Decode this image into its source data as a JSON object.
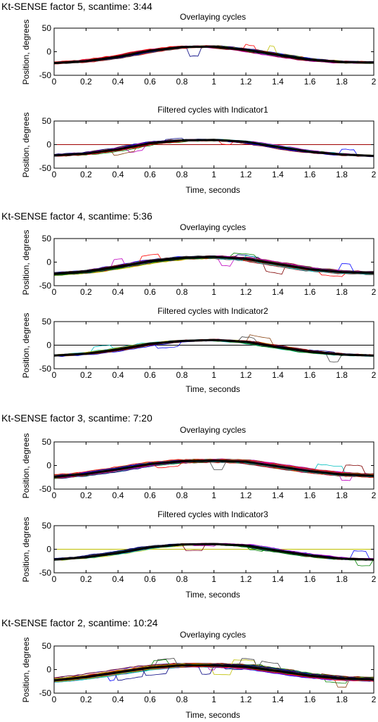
{
  "colors": {
    "axis": "#000000",
    "background": "#ffffff",
    "mean_trace": "#000000",
    "palette": [
      "#0000ff",
      "#008000",
      "#ff0000",
      "#00bfbf",
      "#bf00bf",
      "#bfbf00",
      "#404040",
      "#8b4513",
      "#000080",
      "#800000"
    ]
  },
  "sections": [
    {
      "heading": "Kt-SENSE factor 5, scantime: 3:44"
    },
    {
      "heading": "Kt-SENSE factor 4, scantime: 5:36"
    },
    {
      "heading": "Kt-SENSE factor 3, scantime: 7:20"
    },
    {
      "heading": "Kt-SENSE factor 2, scantime: 10:24"
    }
  ],
  "chart_data": [
    {
      "type": "line",
      "section": 0,
      "title": "Overlaying cycles",
      "xlabel": "",
      "ylabel": "Position, degrees",
      "xlim": [
        0,
        2
      ],
      "ylim": [
        -50,
        50
      ],
      "xticks": [
        "0",
        "0.2",
        "0.4",
        "0.6",
        "0.8",
        "1",
        "1.2",
        "1.4",
        "1.6",
        "1.8",
        "2"
      ],
      "yticks": [
        "50",
        "0",
        "-50"
      ],
      "grid": false,
      "trace_count": 40,
      "spread": 4,
      "reference_line": null,
      "mean_cycle": {
        "x": [
          0,
          0.2,
          0.4,
          0.6,
          0.8,
          1.0,
          1.2,
          1.4,
          1.6,
          1.8,
          2.0
        ],
        "y": [
          -24,
          -20,
          -11,
          2,
          10,
          11,
          4,
          -7,
          -17,
          -22,
          -23
        ]
      }
    },
    {
      "type": "line",
      "section": 0,
      "title": "Filtered cycles with Indicator1",
      "xlabel": "Time, seconds",
      "ylabel": "Position, degrees",
      "xlim": [
        0,
        2
      ],
      "ylim": [
        -50,
        50
      ],
      "xticks": [
        "0",
        "0.2",
        "0.4",
        "0.6",
        "0.8",
        "1",
        "1.2",
        "1.4",
        "1.6",
        "1.8",
        "2"
      ],
      "yticks": [
        "50",
        "0",
        "-50"
      ],
      "grid": false,
      "trace_count": 25,
      "spread": 3,
      "reference_line": {
        "y": 0,
        "color": "#a00000"
      },
      "mean_cycle": {
        "x": [
          0,
          0.2,
          0.4,
          0.6,
          0.8,
          1.0,
          1.2,
          1.4,
          1.6,
          1.8,
          2.0
        ],
        "y": [
          -23,
          -19,
          -10,
          3,
          9,
          10,
          6,
          -5,
          -15,
          -21,
          -24
        ]
      }
    },
    {
      "type": "line",
      "section": 1,
      "title": "Overlaying cycles",
      "xlabel": "",
      "ylabel": "Position, degrees",
      "xlim": [
        0,
        2
      ],
      "ylim": [
        -50,
        50
      ],
      "xticks": [
        "0",
        "0.2",
        "0.4",
        "0.6",
        "0.8",
        "1",
        "1.2",
        "1.4",
        "1.6",
        "1.8",
        "2"
      ],
      "yticks": [
        "50",
        "0",
        "-50"
      ],
      "grid": false,
      "trace_count": 45,
      "spread": 6,
      "reference_line": null,
      "mean_cycle": {
        "x": [
          0,
          0.2,
          0.4,
          0.6,
          0.8,
          1.0,
          1.2,
          1.4,
          1.6,
          1.8,
          2.0
        ],
        "y": [
          -25,
          -20,
          -10,
          2,
          9,
          11,
          7,
          -4,
          -15,
          -21,
          -23
        ]
      }
    },
    {
      "type": "line",
      "section": 1,
      "title": "Filtered cycles with Indicator2",
      "xlabel": "Time, seconds",
      "ylabel": "Position, degrees",
      "xlim": [
        0,
        2
      ],
      "ylim": [
        -50,
        50
      ],
      "xticks": [
        "0",
        "0.2",
        "0.4",
        "0.6",
        "0.8",
        "1",
        "1.2",
        "1.4",
        "1.6",
        "1.8",
        "2"
      ],
      "yticks": [
        "50",
        "0",
        "-50"
      ],
      "grid": false,
      "trace_count": 30,
      "spread": 3,
      "reference_line": {
        "y": 0,
        "color": "#000000"
      },
      "mean_cycle": {
        "x": [
          0,
          0.2,
          0.4,
          0.6,
          0.8,
          1.0,
          1.2,
          1.4,
          1.6,
          1.8,
          2.0
        ],
        "y": [
          -22,
          -18,
          -9,
          3,
          9,
          11,
          7,
          -4,
          -14,
          -20,
          -22
        ]
      }
    },
    {
      "type": "line",
      "section": 2,
      "title": "Overlaying cycles",
      "xlabel": "",
      "ylabel": "Position, degrees",
      "xlim": [
        0,
        2
      ],
      "ylim": [
        -50,
        50
      ],
      "xticks": [
        "0",
        "0.2",
        "0.4",
        "0.6",
        "0.8",
        "1",
        "1.2",
        "1.4",
        "1.6",
        "1.8",
        "2"
      ],
      "yticks": [
        "50",
        "0",
        "-50"
      ],
      "grid": false,
      "trace_count": 55,
      "spread": 7,
      "reference_line": null,
      "mean_cycle": {
        "x": [
          0,
          0.2,
          0.4,
          0.6,
          0.8,
          1.0,
          1.2,
          1.4,
          1.6,
          1.8,
          2.0
        ],
        "y": [
          -24,
          -18,
          -8,
          3,
          9,
          10,
          8,
          -2,
          -12,
          -19,
          -22
        ]
      }
    },
    {
      "type": "line",
      "section": 2,
      "title": "Filtered cycles with Indicator3",
      "xlabel": "Time, seconds",
      "ylabel": "Position, degrees",
      "xlim": [
        0,
        2
      ],
      "ylim": [
        -50,
        50
      ],
      "xticks": [
        "0",
        "0.2",
        "0.4",
        "0.6",
        "0.8",
        "1",
        "1.2",
        "1.4",
        "1.6",
        "1.8",
        "2"
      ],
      "yticks": [
        "50",
        "0",
        "-50"
      ],
      "grid": false,
      "trace_count": 35,
      "spread": 3,
      "reference_line": {
        "y": 0,
        "color": "#bfbf00"
      },
      "mean_cycle": {
        "x": [
          0,
          0.2,
          0.4,
          0.6,
          0.8,
          1.0,
          1.2,
          1.4,
          1.6,
          1.8,
          2.0
        ],
        "y": [
          -22,
          -17,
          -8,
          4,
          10,
          11,
          8,
          -3,
          -13,
          -20,
          -22
        ]
      }
    },
    {
      "type": "line",
      "section": 3,
      "title": "Overlaying cycles",
      "xlabel": "Time, seconds",
      "ylabel": "Position, degrees",
      "xlim": [
        0,
        2
      ],
      "ylim": [
        -50,
        50
      ],
      "xticks": [
        "0",
        "0.2",
        "0.4",
        "0.6",
        "0.8",
        "1",
        "1.2",
        "1.4",
        "1.6",
        "1.8",
        "2"
      ],
      "yticks": [
        "50",
        "0",
        "-50"
      ],
      "grid": false,
      "trace_count": 70,
      "spread": 8,
      "reference_line": null,
      "mean_cycle": {
        "x": [
          0,
          0.2,
          0.4,
          0.6,
          0.8,
          1.0,
          1.2,
          1.4,
          1.6,
          1.8,
          2.0
        ],
        "y": [
          -23,
          -16,
          -6,
          4,
          9,
          9,
          6,
          -3,
          -13,
          -19,
          -21
        ]
      }
    }
  ]
}
